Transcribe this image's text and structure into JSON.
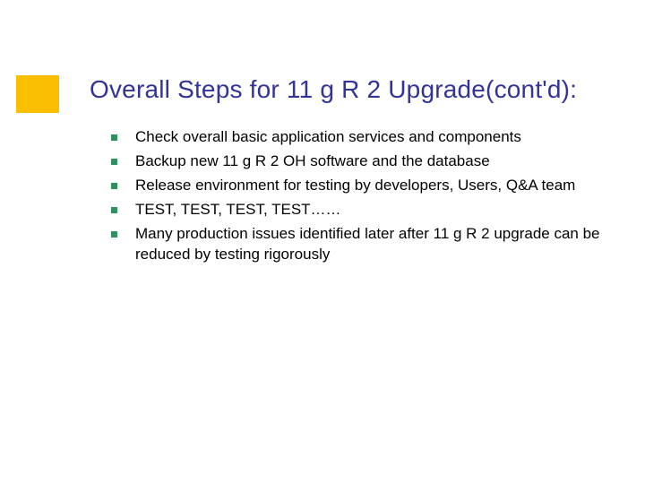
{
  "accent_color": "#fabf00",
  "title_color": "#333399",
  "bullet_marker_color": "#309060",
  "body_text_color": "#000000",
  "background_color": "#ffffff",
  "title": "Overall Steps for 11 g R 2 Upgrade(cont'd):",
  "title_fontsize": 28,
  "body_fontsize": 17,
  "bullets": [
    "Check overall basic application services and components",
    "Backup new 11 g R 2 OH software and the database",
    "Release environment for testing by developers, Users, Q&A team",
    "TEST, TEST, TEST, TEST……",
    "Many production issues identified later after 11 g R 2 upgrade can be reduced by testing rigorously"
  ]
}
